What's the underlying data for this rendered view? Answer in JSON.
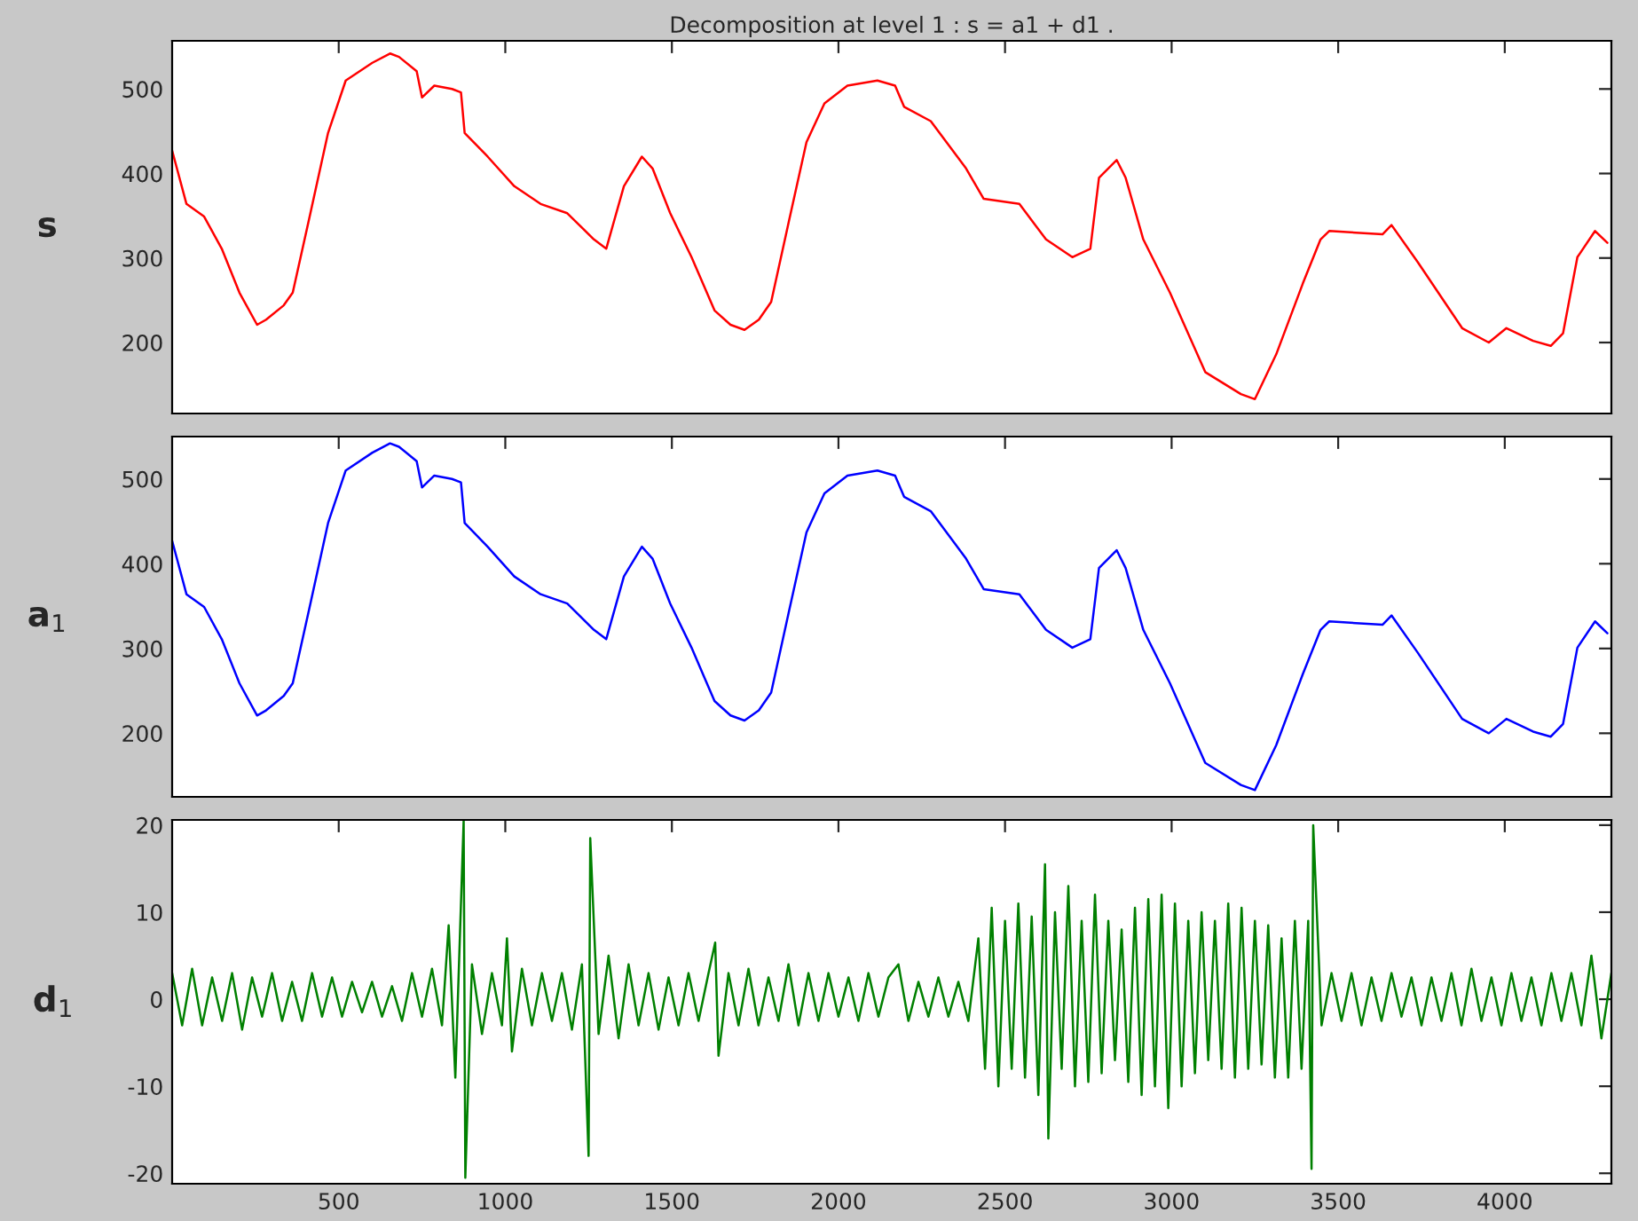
{
  "chart_data": [
    {
      "type": "line",
      "title": "Decomposition at level 1 : s = a1 + d1 .",
      "ylabel": "s",
      "tick_labels": "y",
      "xlim": [
        0,
        4320
      ],
      "xticks": [
        500,
        1000,
        1500,
        2000,
        2500,
        3000,
        3500,
        4000
      ],
      "ylim": [
        116,
        557
      ],
      "yticks": [
        200,
        300,
        400,
        500
      ],
      "x": [
        0,
        43,
        96,
        149,
        202,
        255,
        282,
        335,
        362,
        415,
        468,
        521,
        601,
        654,
        681,
        734,
        750,
        787,
        840,
        867,
        878,
        947,
        1027,
        1106,
        1186,
        1266,
        1303,
        1356,
        1410,
        1442,
        1495,
        1559,
        1628,
        1676,
        1718,
        1761,
        1798,
        1851,
        1904,
        1958,
        2027,
        2117,
        2170,
        2197,
        2277,
        2383,
        2436,
        2543,
        2623,
        2702,
        2756,
        2782,
        2835,
        2862,
        2915,
        2995,
        3101,
        3208,
        3250,
        3314,
        3394,
        3447,
        3473,
        3633,
        3660,
        3739,
        3872,
        3952,
        4005,
        4085,
        4138,
        4175,
        4218,
        4271,
        4308
      ],
      "series": [
        {
          "color": "#ff0000",
          "values": [
            427,
            364,
            349,
            311,
            259,
            221,
            227,
            244,
            259,
            353,
            448,
            510,
            531,
            542,
            538,
            521,
            490,
            504,
            500,
            496,
            448,
            420,
            385,
            364,
            353,
            322,
            311,
            385,
            420,
            406,
            353,
            301,
            238,
            221,
            215,
            227,
            248,
            343,
            437,
            483,
            504,
            510,
            504,
            479,
            462,
            406,
            370,
            364,
            322,
            301,
            311,
            395,
            416,
            395,
            322,
            259,
            165,
            139,
            133,
            186,
            270,
            322,
            332,
            328,
            339,
            295,
            217,
            200,
            217,
            202,
            196,
            211,
            301,
            332,
            318
          ]
        }
      ]
    },
    {
      "type": "line",
      "ylabel": "a$_{1}$",
      "tick_labels": "y",
      "xlim": [
        0,
        4320
      ],
      "xticks": [
        500,
        1000,
        1500,
        2000,
        2500,
        3000,
        3500,
        4000
      ],
      "ylim": [
        125,
        550
      ],
      "yticks": [
        200,
        300,
        400,
        500
      ],
      "x": [
        0,
        43,
        96,
        149,
        202,
        255,
        282,
        335,
        362,
        415,
        468,
        521,
        601,
        654,
        681,
        734,
        750,
        787,
        840,
        867,
        878,
        947,
        1027,
        1106,
        1186,
        1266,
        1303,
        1356,
        1410,
        1442,
        1495,
        1559,
        1628,
        1676,
        1718,
        1761,
        1798,
        1851,
        1904,
        1958,
        2027,
        2117,
        2170,
        2197,
        2277,
        2383,
        2436,
        2543,
        2623,
        2702,
        2756,
        2782,
        2835,
        2862,
        2915,
        2995,
        3101,
        3208,
        3250,
        3314,
        3394,
        3447,
        3473,
        3633,
        3660,
        3739,
        3872,
        3952,
        4005,
        4085,
        4138,
        4175,
        4218,
        4271,
        4308
      ],
      "series": [
        {
          "color": "#0000ff",
          "values": [
            427,
            364,
            349,
            311,
            259,
            221,
            227,
            244,
            259,
            353,
            448,
            510,
            531,
            542,
            538,
            521,
            490,
            504,
            500,
            496,
            448,
            420,
            385,
            364,
            353,
            322,
            311,
            385,
            420,
            406,
            353,
            301,
            238,
            221,
            215,
            227,
            248,
            343,
            437,
            483,
            504,
            510,
            504,
            479,
            462,
            406,
            370,
            364,
            322,
            301,
            311,
            395,
            416,
            395,
            322,
            259,
            165,
            139,
            133,
            186,
            270,
            322,
            332,
            328,
            339,
            295,
            217,
            200,
            217,
            202,
            196,
            211,
            301,
            332,
            318
          ]
        }
      ]
    },
    {
      "type": "line",
      "ylabel": "d$_{1}$",
      "xlim": [
        0,
        4320
      ],
      "xticks": [
        500,
        1000,
        1500,
        2000,
        2500,
        3000,
        3500,
        4000
      ],
      "ylim": [
        -21.2,
        20.6
      ],
      "yticks": [
        -20,
        -10,
        0,
        10,
        20
      ],
      "x": [
        0,
        30,
        60,
        90,
        120,
        150,
        180,
        210,
        240,
        270,
        300,
        330,
        360,
        390,
        420,
        450,
        480,
        510,
        540,
        570,
        600,
        630,
        660,
        690,
        720,
        750,
        780,
        810,
        830,
        850,
        875,
        880,
        900,
        930,
        960,
        990,
        1005,
        1020,
        1050,
        1080,
        1110,
        1140,
        1170,
        1200,
        1230,
        1250,
        1255,
        1280,
        1310,
        1340,
        1370,
        1400,
        1430,
        1460,
        1490,
        1520,
        1550,
        1580,
        1610,
        1630,
        1640,
        1670,
        1700,
        1730,
        1760,
        1790,
        1820,
        1850,
        1880,
        1910,
        1940,
        1970,
        2000,
        2030,
        2060,
        2090,
        2120,
        2150,
        2180,
        2210,
        2240,
        2270,
        2300,
        2330,
        2360,
        2390,
        2420,
        2440,
        2460,
        2480,
        2500,
        2520,
        2540,
        2560,
        2580,
        2600,
        2620,
        2630,
        2650,
        2670,
        2690,
        2710,
        2730,
        2750,
        2770,
        2790,
        2810,
        2830,
        2850,
        2870,
        2890,
        2910,
        2930,
        2950,
        2970,
        2990,
        3010,
        3030,
        3050,
        3070,
        3090,
        3110,
        3130,
        3150,
        3170,
        3190,
        3210,
        3230,
        3250,
        3270,
        3290,
        3310,
        3330,
        3350,
        3370,
        3390,
        3410,
        3420,
        3425,
        3450,
        3480,
        3510,
        3540,
        3570,
        3600,
        3630,
        3660,
        3690,
        3720,
        3750,
        3780,
        3810,
        3840,
        3870,
        3900,
        3930,
        3960,
        3990,
        4020,
        4050,
        4080,
        4110,
        4140,
        4170,
        4200,
        4230,
        4260,
        4290,
        4320
      ],
      "series": [
        {
          "color": "#008000",
          "values": [
            3,
            -3,
            3.5,
            -3,
            2.5,
            -2.5,
            3,
            -3.5,
            2.5,
            -2,
            3,
            -2.5,
            2,
            -2.5,
            3,
            -2,
            2.5,
            -2,
            2,
            -1.5,
            2,
            -2,
            1.5,
            -2.5,
            3,
            -2,
            3.5,
            -3,
            8.5,
            -9,
            20.5,
            -20.5,
            4,
            -4,
            3,
            -3,
            7,
            -6,
            3.5,
            -3,
            3,
            -2.5,
            3,
            -3.5,
            4,
            -18,
            18.5,
            -4,
            5,
            -4.5,
            4,
            -3,
            3,
            -3.5,
            2.5,
            -3,
            3,
            -2.5,
            3,
            6.5,
            -6.5,
            3,
            -3,
            3.5,
            -3,
            2.5,
            -2.5,
            4,
            -3,
            3,
            -2.5,
            3,
            -2,
            2.5,
            -2.5,
            3,
            -2,
            2.5,
            4,
            -2.5,
            2,
            -2,
            2.5,
            -2,
            2,
            -2.5,
            7,
            -8,
            10.5,
            -10,
            9,
            -8,
            11,
            -9,
            9.5,
            -11,
            15.5,
            -16,
            10,
            -8,
            13,
            -10,
            9,
            -9.5,
            12,
            -8.5,
            9,
            -7,
            8,
            -9.5,
            10.5,
            -11,
            11.5,
            -10,
            12,
            -12.5,
            11,
            -10,
            9,
            -8.5,
            10,
            -7,
            9,
            -8,
            11,
            -9,
            10.5,
            -8,
            9,
            -7.5,
            8.5,
            -9,
            7,
            -9,
            9,
            -8,
            9,
            -19.5,
            20,
            -3,
            3,
            -2.5,
            3,
            -3,
            2.5,
            -2.5,
            3,
            -2,
            2.5,
            -3,
            2.5,
            -2.5,
            3,
            -3,
            3.5,
            -2.5,
            2.5,
            -3,
            3,
            -2.5,
            2.5,
            -3,
            3,
            -2.5,
            3,
            -3,
            5,
            -4.5,
            3
          ]
        }
      ]
    }
  ]
}
